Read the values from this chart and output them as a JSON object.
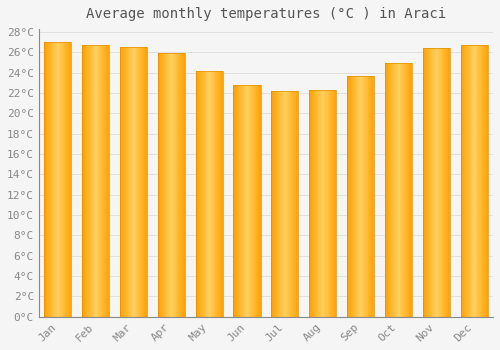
{
  "title": "Average monthly temperatures (°C ) in Araci",
  "months": [
    "Jan",
    "Feb",
    "Mar",
    "Apr",
    "May",
    "Jun",
    "Jul",
    "Aug",
    "Sep",
    "Oct",
    "Nov",
    "Dec"
  ],
  "values": [
    27.0,
    26.7,
    26.5,
    25.9,
    24.2,
    22.8,
    22.2,
    22.3,
    23.7,
    25.0,
    26.4,
    26.7
  ],
  "bar_color_light": "#FFD060",
  "bar_color_dark": "#FFA000",
  "bar_edge_color": "#E09000",
  "ylim": [
    0,
    28
  ],
  "ytick_step": 2,
  "background_color": "#f5f5f5",
  "plot_bg_color": "#f5f5f5",
  "grid_color": "#dddddd",
  "title_fontsize": 10,
  "tick_fontsize": 8,
  "tick_color": "#888888",
  "title_color": "#555555"
}
